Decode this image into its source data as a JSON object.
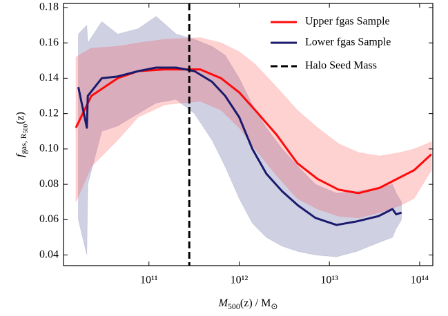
{
  "chart_data": {
    "type": "line",
    "xlabel": [
      "M",
      "500",
      "(z) / M",
      "⊙"
    ],
    "ylabel": [
      "f",
      "gas, R",
      "500",
      "(z)"
    ],
    "xscale": "log",
    "xlim": [
      11300000000.0,
      140000000000000.0
    ],
    "ylim": [
      0.034,
      0.1823
    ],
    "xticks": [
      {
        "value": 100000000000.0,
        "label": "10¹¹"
      },
      {
        "value": 1000000000000.0,
        "label": "10¹²"
      },
      {
        "value": 10000000000000.0,
        "label": "10¹³"
      },
      {
        "value": 100000000000000.0,
        "label": "10¹⁴"
      }
    ],
    "yticks": [
      0.04,
      0.06,
      0.08,
      {
        "value": 0.1,
        "label": "0.10"
      },
      0.12,
      0.14,
      0.16,
      0.18
    ],
    "legend": "upper right",
    "series": [
      {
        "name": "Upper fgas Sample",
        "color": "#ff0a0a",
        "band_color": "#ff3030",
        "x": [
          15500000000.0,
          23000000000.0,
          45000000000.0,
          76000000000.0,
          150000000000.0,
          370000000000.0,
          630000000000.0,
          1000000000000.0,
          1500000000000.0,
          2600000000000.0,
          4400000000000.0,
          7400000000000.0,
          12600000000000.0,
          21000000000000.0,
          36000000000000.0,
          61000000000000.0,
          87000000000000.0,
          135000000000000.0
        ],
        "values": [
          0.112,
          0.13,
          0.14,
          0.144,
          0.145,
          0.145,
          0.14,
          0.132,
          0.122,
          0.108,
          0.092,
          0.083,
          0.077,
          0.075,
          0.078,
          0.084,
          0.088,
          0.097
        ],
        "lower": [
          0.07,
          0.09,
          0.105,
          0.118,
          0.125,
          0.127,
          0.122,
          0.112,
          0.1,
          0.085,
          0.072,
          0.066,
          0.062,
          0.061,
          0.064,
          0.068,
          0.072,
          0.088
        ],
        "upper": [
          0.152,
          0.157,
          0.158,
          0.16,
          0.162,
          0.163,
          0.16,
          0.155,
          0.148,
          0.135,
          0.122,
          0.112,
          0.103,
          0.098,
          0.096,
          0.098,
          0.1,
          0.104
        ]
      },
      {
        "name": "Lower fgas Sample",
        "color": "#1a1a6e",
        "band_color": "#2a2a80",
        "x": [
          16500000000.0,
          20500000000.0,
          21000000000.0,
          30000000000.0,
          45000000000.0,
          76000000000.0,
          120000000000.0,
          200000000000.0,
          320000000000.0,
          500000000000.0,
          700000000000.0,
          1000000000000.0,
          1400000000000.0,
          2000000000000.0,
          3000000000000.0,
          4500000000000.0,
          7000000000000.0,
          12000000000000.0,
          20000000000000.0,
          35000000000000.0,
          50000000000000.0,
          55000000000000.0,
          63000000000000.0
        ],
        "values": [
          0.135,
          0.112,
          0.13,
          0.14,
          0.141,
          0.144,
          0.146,
          0.146,
          0.144,
          0.138,
          0.13,
          0.118,
          0.1,
          0.086,
          0.076,
          0.068,
          0.061,
          0.057,
          0.059,
          0.062,
          0.066,
          0.063,
          0.064
        ],
        "lower": [
          0.06,
          0.04,
          0.08,
          0.11,
          0.113,
          0.12,
          0.126,
          0.128,
          0.12,
          0.105,
          0.09,
          0.072,
          0.058,
          0.05,
          0.045,
          0.042,
          0.04,
          0.039,
          0.042,
          0.047,
          0.05,
          0.055,
          0.06
        ],
        "upper": [
          0.165,
          0.17,
          0.16,
          0.172,
          0.165,
          0.168,
          0.175,
          0.165,
          0.162,
          0.158,
          0.153,
          0.14,
          0.125,
          0.112,
          0.1,
          0.09,
          0.08,
          0.075,
          0.076,
          0.078,
          0.08,
          0.075,
          0.07
        ]
      }
    ],
    "vline": {
      "name": "Halo Seed Mass",
      "x": 280000000000.0,
      "color": "#000000",
      "style": "dashed"
    }
  }
}
